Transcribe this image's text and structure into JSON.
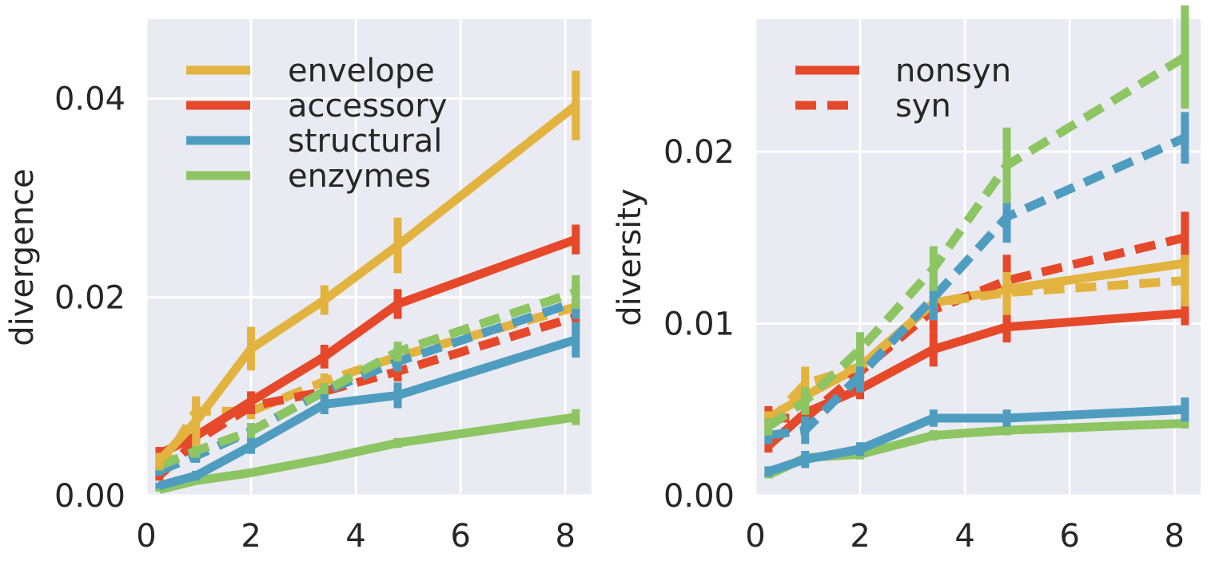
{
  "colors": {
    "envelope": "#E2B33E",
    "accessory": "#E5492A",
    "structural": "#4E9DC0",
    "enzymes": "#8CC562",
    "panel_bg": "#EAEAF2",
    "grid": "#FFFFFF",
    "text": "#262626"
  },
  "chart_data": [
    {
      "type": "line",
      "title": "",
      "xlabel": "",
      "ylabel": "divergence",
      "xlim": [
        0,
        8.5
      ],
      "ylim": [
        0,
        0.048
      ],
      "xticks": [
        0,
        2,
        4,
        6,
        8
      ],
      "xtick_labels": [
        "0",
        "2",
        "4",
        "6",
        "8"
      ],
      "yticks": [
        0,
        0.02,
        0.04
      ],
      "ytick_labels": [
        "0.00",
        "0.02",
        "0.04"
      ],
      "grid": true,
      "legend_position": "top-left",
      "legend": [
        {
          "label": "envelope",
          "color_key": "envelope",
          "dash": "solid"
        },
        {
          "label": "accessory",
          "color_key": "accessory",
          "dash": "solid"
        },
        {
          "label": "structural",
          "color_key": "structural",
          "dash": "solid"
        },
        {
          "label": "enzymes",
          "color_key": "enzymes",
          "dash": "solid"
        }
      ],
      "x": [
        0.25,
        0.95,
        2.0,
        3.4,
        4.8,
        8.2
      ],
      "series": [
        {
          "group": "envelope",
          "color_key": "envelope",
          "dash": "dashed",
          "values": [
            0.0025,
            0.0085,
            0.0085,
            0.0115,
            0.014,
            0.019
          ],
          "err": [
            0.0005,
            0.0008,
            0.0008,
            0.0008,
            0.0012,
            0.0015
          ]
        },
        {
          "group": "accessory",
          "color_key": "accessory",
          "dash": "dashed",
          "values": [
            0.002,
            0.0055,
            0.009,
            0.0105,
            0.0125,
            0.018
          ],
          "err": [
            0.0005,
            0.0008,
            0.0008,
            0.0008,
            0.001,
            0.0015
          ]
        },
        {
          "group": "structural",
          "color_key": "structural",
          "dash": "dashed",
          "values": [
            0.0025,
            0.004,
            0.0065,
            0.0105,
            0.0135,
            0.0195
          ],
          "err": [
            0.0005,
            0.0007,
            0.0008,
            0.0008,
            0.001,
            0.0017
          ]
        },
        {
          "group": "enzymes",
          "color_key": "enzymes",
          "dash": "dashed",
          "values": [
            0.003,
            0.0045,
            0.0065,
            0.0105,
            0.0145,
            0.0205
          ],
          "err": [
            0.0005,
            0.0007,
            0.0008,
            0.0008,
            0.001,
            0.0017
          ]
        },
        {
          "group": "enzymes",
          "color_key": "enzymes",
          "dash": "solid",
          "values": [
            0.0006,
            0.0015,
            0.0023,
            0.0037,
            0.0053,
            0.0079
          ],
          "err": [
            0.0002,
            0.0003,
            0.0003,
            0.0003,
            0.0005,
            0.0008
          ]
        },
        {
          "group": "structural",
          "color_key": "structural",
          "dash": "solid",
          "values": [
            0.001,
            0.002,
            0.005,
            0.0092,
            0.0101,
            0.0157
          ],
          "err": [
            0.0003,
            0.0005,
            0.0008,
            0.001,
            0.0013,
            0.0018
          ]
        },
        {
          "group": "accessory",
          "color_key": "accessory",
          "dash": "solid",
          "values": [
            0.0042,
            0.006,
            0.0095,
            0.014,
            0.0193,
            0.0258
          ],
          "err": [
            0.0007,
            0.0008,
            0.001,
            0.0012,
            0.0015,
            0.0015
          ]
        },
        {
          "group": "envelope",
          "color_key": "envelope",
          "dash": "solid",
          "values": [
            0.0035,
            0.0075,
            0.0148,
            0.0197,
            0.0252,
            0.0393
          ],
          "err": [
            0.0008,
            0.0025,
            0.0022,
            0.0015,
            0.0028,
            0.0035
          ]
        }
      ]
    },
    {
      "type": "line",
      "title": "",
      "xlabel": "",
      "ylabel": "diversity",
      "xlim": [
        0,
        8.5
      ],
      "ylim": [
        0,
        0.0277
      ],
      "xticks": [
        0,
        2,
        4,
        6,
        8
      ],
      "xtick_labels": [
        "0",
        "2",
        "4",
        "6",
        "8"
      ],
      "yticks": [
        0,
        0.01,
        0.02
      ],
      "ytick_labels": [
        "0.00",
        "0.01",
        "0.02"
      ],
      "grid": true,
      "legend_position": "top-left",
      "legend": [
        {
          "label": "nonsyn",
          "color_key": "accessory",
          "dash": "solid"
        },
        {
          "label": "syn",
          "color_key": "accessory",
          "dash": "dashed"
        }
      ],
      "x": [
        0.25,
        0.95,
        2.0,
        3.4,
        4.8,
        8.2
      ],
      "series": [
        {
          "group": "enzymes",
          "color_key": "enzymes",
          "dash": "solid",
          "values": [
            0.0012,
            0.0022,
            0.0024,
            0.0035,
            0.0038,
            0.0042
          ],
          "err": [
            0.0002,
            0.0003,
            0.0003,
            0.0003,
            0.0003,
            0.0003
          ]
        },
        {
          "group": "structural",
          "color_key": "structural",
          "dash": "solid",
          "values": [
            0.0014,
            0.0021,
            0.0027,
            0.0045,
            0.0045,
            0.005
          ],
          "err": [
            0.0003,
            0.0005,
            0.0004,
            0.0005,
            0.0005,
            0.0007
          ]
        },
        {
          "group": "accessory",
          "color_key": "accessory",
          "dash": "solid",
          "values": [
            0.0029,
            0.0048,
            0.0062,
            0.0085,
            0.0098,
            0.0106
          ],
          "err": [
            0.0004,
            0.0006,
            0.0006,
            0.001,
            0.0009,
            0.0007
          ]
        },
        {
          "group": "envelope",
          "color_key": "envelope",
          "dash": "solid",
          "values": [
            0.0045,
            0.0058,
            0.0075,
            0.0112,
            0.012,
            0.0135
          ],
          "err": [
            0.0005,
            0.0012,
            0.001,
            0.0012,
            0.0015,
            0.0015
          ]
        },
        {
          "group": "accessory",
          "color_key": "accessory",
          "dash": "dashed",
          "values": [
            0.0045,
            0.0045,
            0.0072,
            0.0108,
            0.0125,
            0.015
          ],
          "err": [
            0.0007,
            0.0008,
            0.001,
            0.0013,
            0.0015,
            0.0015
          ]
        },
        {
          "group": "envelope",
          "color_key": "envelope",
          "dash": "dashed",
          "values": [
            0.0042,
            0.0065,
            0.0075,
            0.0112,
            0.0118,
            0.0125
          ],
          "err": [
            0.0007,
            0.001,
            0.001,
            0.001,
            0.0012,
            0.0015
          ]
        },
        {
          "group": "structural",
          "color_key": "structural",
          "dash": "dashed",
          "values": [
            0.0035,
            0.0038,
            0.007,
            0.0115,
            0.0162,
            0.0208
          ],
          "err": [
            0.0005,
            0.0008,
            0.001,
            0.0013,
            0.0015,
            0.0015
          ]
        },
        {
          "group": "enzymes",
          "color_key": "enzymes",
          "dash": "dashed",
          "values": [
            0.004,
            0.0055,
            0.0085,
            0.0132,
            0.0192,
            0.0255
          ],
          "err": [
            0.0005,
            0.0008,
            0.001,
            0.0013,
            0.0022,
            0.003
          ]
        }
      ]
    }
  ]
}
